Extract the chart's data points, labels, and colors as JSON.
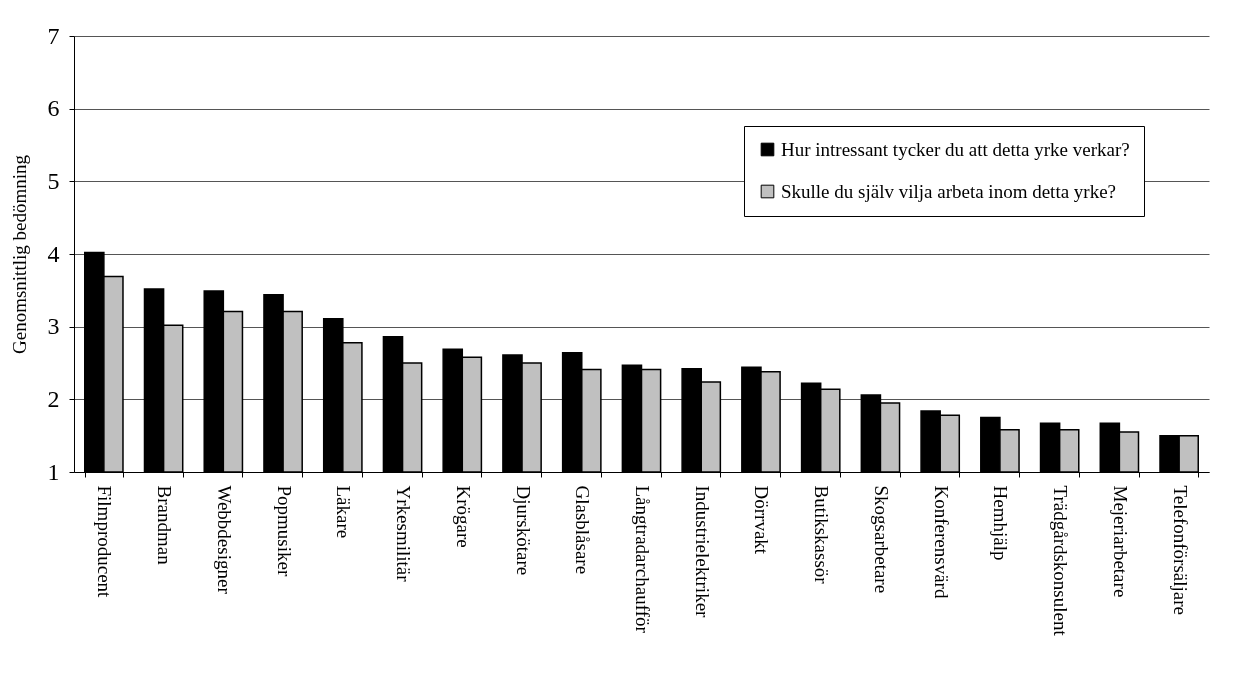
{
  "chart_data": {
    "type": "bar",
    "ylabel": "Genomsnittlig bedömning",
    "categories": [
      "Filmproducent",
      "Brandman",
      "Webbdesigner",
      "Popmusiker",
      "Läkare",
      "Yrkesmilitär",
      "Krögare",
      "Djurskötare",
      "Glasblåsare",
      "Långtradarchaufför",
      "Industrielektriker",
      "Dörrvakt",
      "Butikskassör",
      "Skogsarbetare",
      "Konferensvärd",
      "Hemhjälp",
      "Trädgårdskonsulent",
      "Mejeriarbetare",
      "Telefonförsäljare"
    ],
    "series": [
      {
        "name": "Hur intressant tycker du att detta yrke verkar?",
        "color": "#000000",
        "values": [
          4.02,
          3.52,
          3.49,
          3.44,
          3.11,
          2.86,
          2.69,
          2.61,
          2.64,
          2.47,
          2.42,
          2.44,
          2.22,
          2.06,
          1.84,
          1.75,
          1.67,
          1.67,
          1.5
        ]
      },
      {
        "name": "Skulle du själv vilja arbeta inom detta yrke?",
        "color": "#c0c0c0",
        "values": [
          3.69,
          3.02,
          3.21,
          3.21,
          2.78,
          2.5,
          2.58,
          2.5,
          2.41,
          2.41,
          2.24,
          2.38,
          2.14,
          1.95,
          1.78,
          1.58,
          1.58,
          1.55,
          1.5
        ]
      }
    ],
    "ylim": [
      1,
      7
    ],
    "yticks": [
      1,
      2,
      3,
      4,
      5,
      6,
      7
    ],
    "grid": "y",
    "legend": "top right"
  }
}
